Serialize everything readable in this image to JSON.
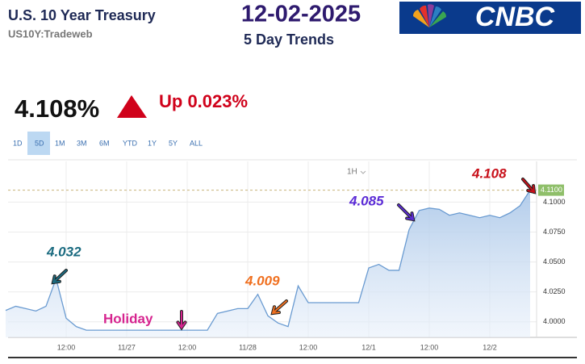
{
  "header": {
    "title": "U.S. 10 Year Treasury",
    "symbol": "US10Y:Tradeweb",
    "date": "12-02-2025",
    "subtitle": "5 Day Trends",
    "logo": "CNBC"
  },
  "quote": {
    "price": "4.108%",
    "change": "Up 0.023%"
  },
  "ranges": [
    "1D",
    "5D",
    "1M",
    "3M",
    "6M",
    "YTD",
    "1Y",
    "5Y",
    "ALL"
  ],
  "interval": "1H",
  "chart_data": {
    "type": "area",
    "categories": [
      null,
      null,
      null,
      null,
      null,
      null,
      "12:00",
      null,
      null,
      null,
      null,
      null,
      "11/27",
      null,
      null,
      null,
      null,
      null,
      "12:00",
      null,
      null,
      null,
      null,
      null,
      "11/28",
      null,
      null,
      null,
      null,
      null,
      "12:00",
      null,
      null,
      null,
      null,
      null,
      "12/1",
      null,
      null,
      null,
      null,
      null,
      "12:00",
      null,
      null,
      null,
      null,
      null,
      "12/2",
      null,
      null,
      null,
      null
    ],
    "series": [
      {
        "color": "#6a9bd1",
        "values": [
          4.0095,
          4.013,
          4.011,
          4.009,
          4.013,
          4.036,
          4.003,
          3.996,
          3.993,
          3.993,
          3.993,
          3.993,
          3.993,
          3.993,
          3.993,
          3.993,
          3.993,
          3.993,
          3.993,
          3.993,
          3.993,
          4.007,
          4.009,
          4.011,
          4.011,
          4.023,
          4.005,
          3.999,
          3.996,
          4.03,
          4.016,
          4.016,
          4.016,
          4.016,
          4.016,
          4.016,
          4.045,
          4.048,
          4.043,
          4.043,
          4.077,
          4.093,
          4.095,
          4.094,
          4.089,
          4.091,
          4.089,
          4.087,
          4.089,
          4.087,
          4.091,
          4.097,
          4.11
        ]
      }
    ],
    "ylim": [
      3.987,
      4.134
    ],
    "yticks": [
      {
        "value": 4,
        "label": "4.0000"
      },
      {
        "value": 4.025,
        "label": "4.0250"
      },
      {
        "value": 4.05,
        "label": "4.0500"
      },
      {
        "value": 4.075,
        "label": "4.0750"
      },
      {
        "value": 4.1,
        "label": "4.1000"
      }
    ],
    "grid": true,
    "marker": {
      "value": 4.11,
      "label": "4.1100",
      "color": "#8fbf6a"
    },
    "annotations": [
      {
        "text": "4.032",
        "color": "#1b6b80"
      },
      {
        "text": "Holiday",
        "color": "#d6248f"
      },
      {
        "text": "4.009",
        "color": "#f07020"
      },
      {
        "text": "4.085",
        "color": "#5b2bd6"
      },
      {
        "text": "4.108",
        "color": "#c8101a"
      }
    ]
  }
}
